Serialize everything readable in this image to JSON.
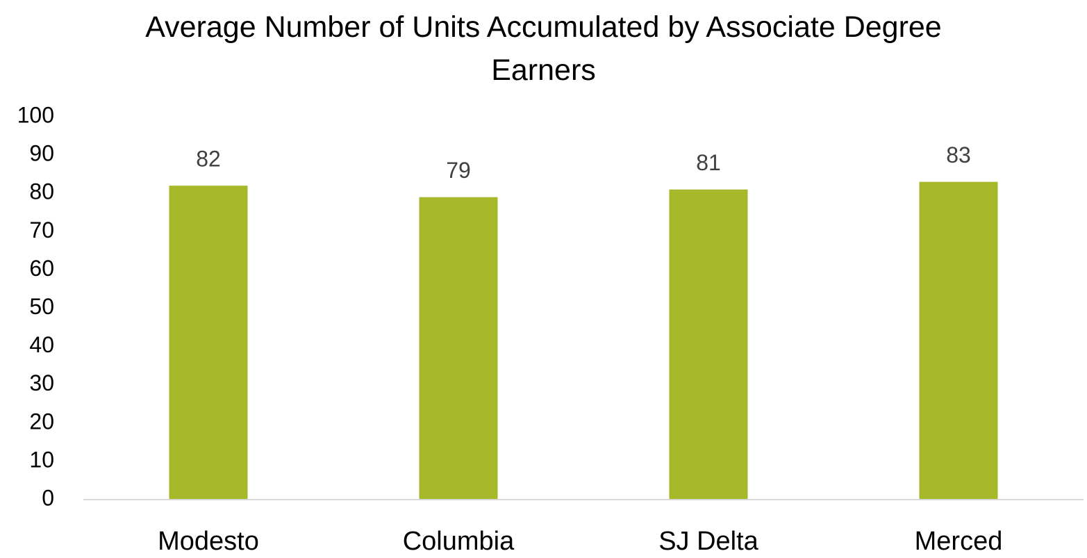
{
  "chart_data": {
    "type": "bar",
    "title": "Average Number of Units Accumulated by Associate Degree Earners",
    "categories": [
      "Modesto",
      "Columbia",
      "SJ Delta",
      "Merced"
    ],
    "values": [
      82,
      79,
      81,
      83
    ],
    "color": "#a7b82a",
    "ylim": [
      0,
      100
    ],
    "yticks": [
      0,
      10,
      20,
      30,
      40,
      50,
      60,
      70,
      80,
      90,
      100
    ],
    "grid": false
  }
}
